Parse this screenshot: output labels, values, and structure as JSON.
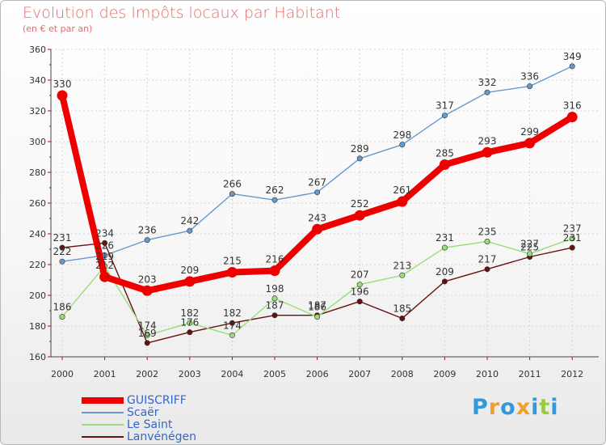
{
  "chart_data": {
    "type": "line",
    "title": "Evolution des Impôts locaux par Habitant",
    "subtitle": "(en € et par an)",
    "xlabel": "",
    "ylabel": "",
    "x": [
      "2000",
      "2001",
      "2002",
      "2003",
      "2004",
      "2005",
      "2006",
      "2007",
      "2008",
      "2009",
      "2010",
      "2011",
      "2012"
    ],
    "ylim": [
      160,
      360
    ],
    "yticks": [
      160,
      180,
      200,
      220,
      240,
      260,
      280,
      300,
      320,
      340,
      360
    ],
    "grid": true,
    "series": [
      {
        "name": "GUISCRIFF",
        "color": "#ee0000",
        "values": [
          330,
          212,
          203,
          209,
          215,
          216,
          243,
          252,
          261,
          285,
          293,
          299,
          316
        ]
      },
      {
        "name": "Scaër",
        "color": "#6699cc",
        "values": [
          222,
          226,
          236,
          242,
          266,
          262,
          267,
          289,
          298,
          317,
          332,
          336,
          349
        ]
      },
      {
        "name": "Le Saint",
        "color": "#99dd77",
        "values": [
          186,
          219,
          174,
          182,
          174,
          198,
          186,
          207,
          213,
          231,
          235,
          227,
          237
        ]
      },
      {
        "name": "Lanvénégen",
        "color": "#661111",
        "values": [
          231,
          234,
          169,
          176,
          182,
          187,
          187,
          196,
          185,
          209,
          217,
          225,
          231
        ]
      }
    ]
  },
  "logo": {
    "text": "Proxiti",
    "letters": [
      "P",
      "r",
      "o",
      "x",
      "i",
      "t",
      "i"
    ],
    "colors": [
      "#3399dd",
      "#f0a030",
      "#3399dd",
      "#f0a030",
      "#3399dd",
      "#99cc44",
      "#3399dd"
    ]
  }
}
